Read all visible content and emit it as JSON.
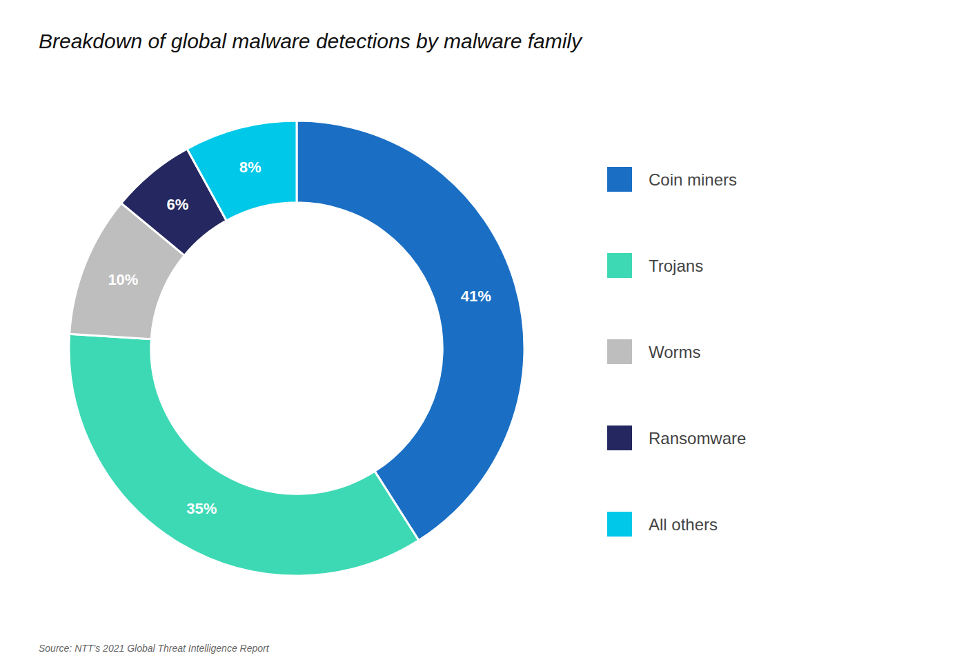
{
  "chart_data": {
    "type": "donut",
    "title": "Breakdown of global malware detections by malware family",
    "source": "Source: NTT’s 2021 Global Threat Intelligence Report",
    "categories": [
      "Coin miners",
      "Trojans",
      "Worms",
      "Ransomware",
      "All others"
    ],
    "values": [
      41,
      35,
      10,
      6,
      8
    ],
    "value_labels": [
      "41%",
      "35%",
      "10%",
      "6%",
      "8%"
    ],
    "colors": [
      "#1A6FC4",
      "#3DD9B5",
      "#BEBEBE",
      "#252860",
      "#00C8E8"
    ],
    "data_labels": true,
    "legend": "right"
  }
}
